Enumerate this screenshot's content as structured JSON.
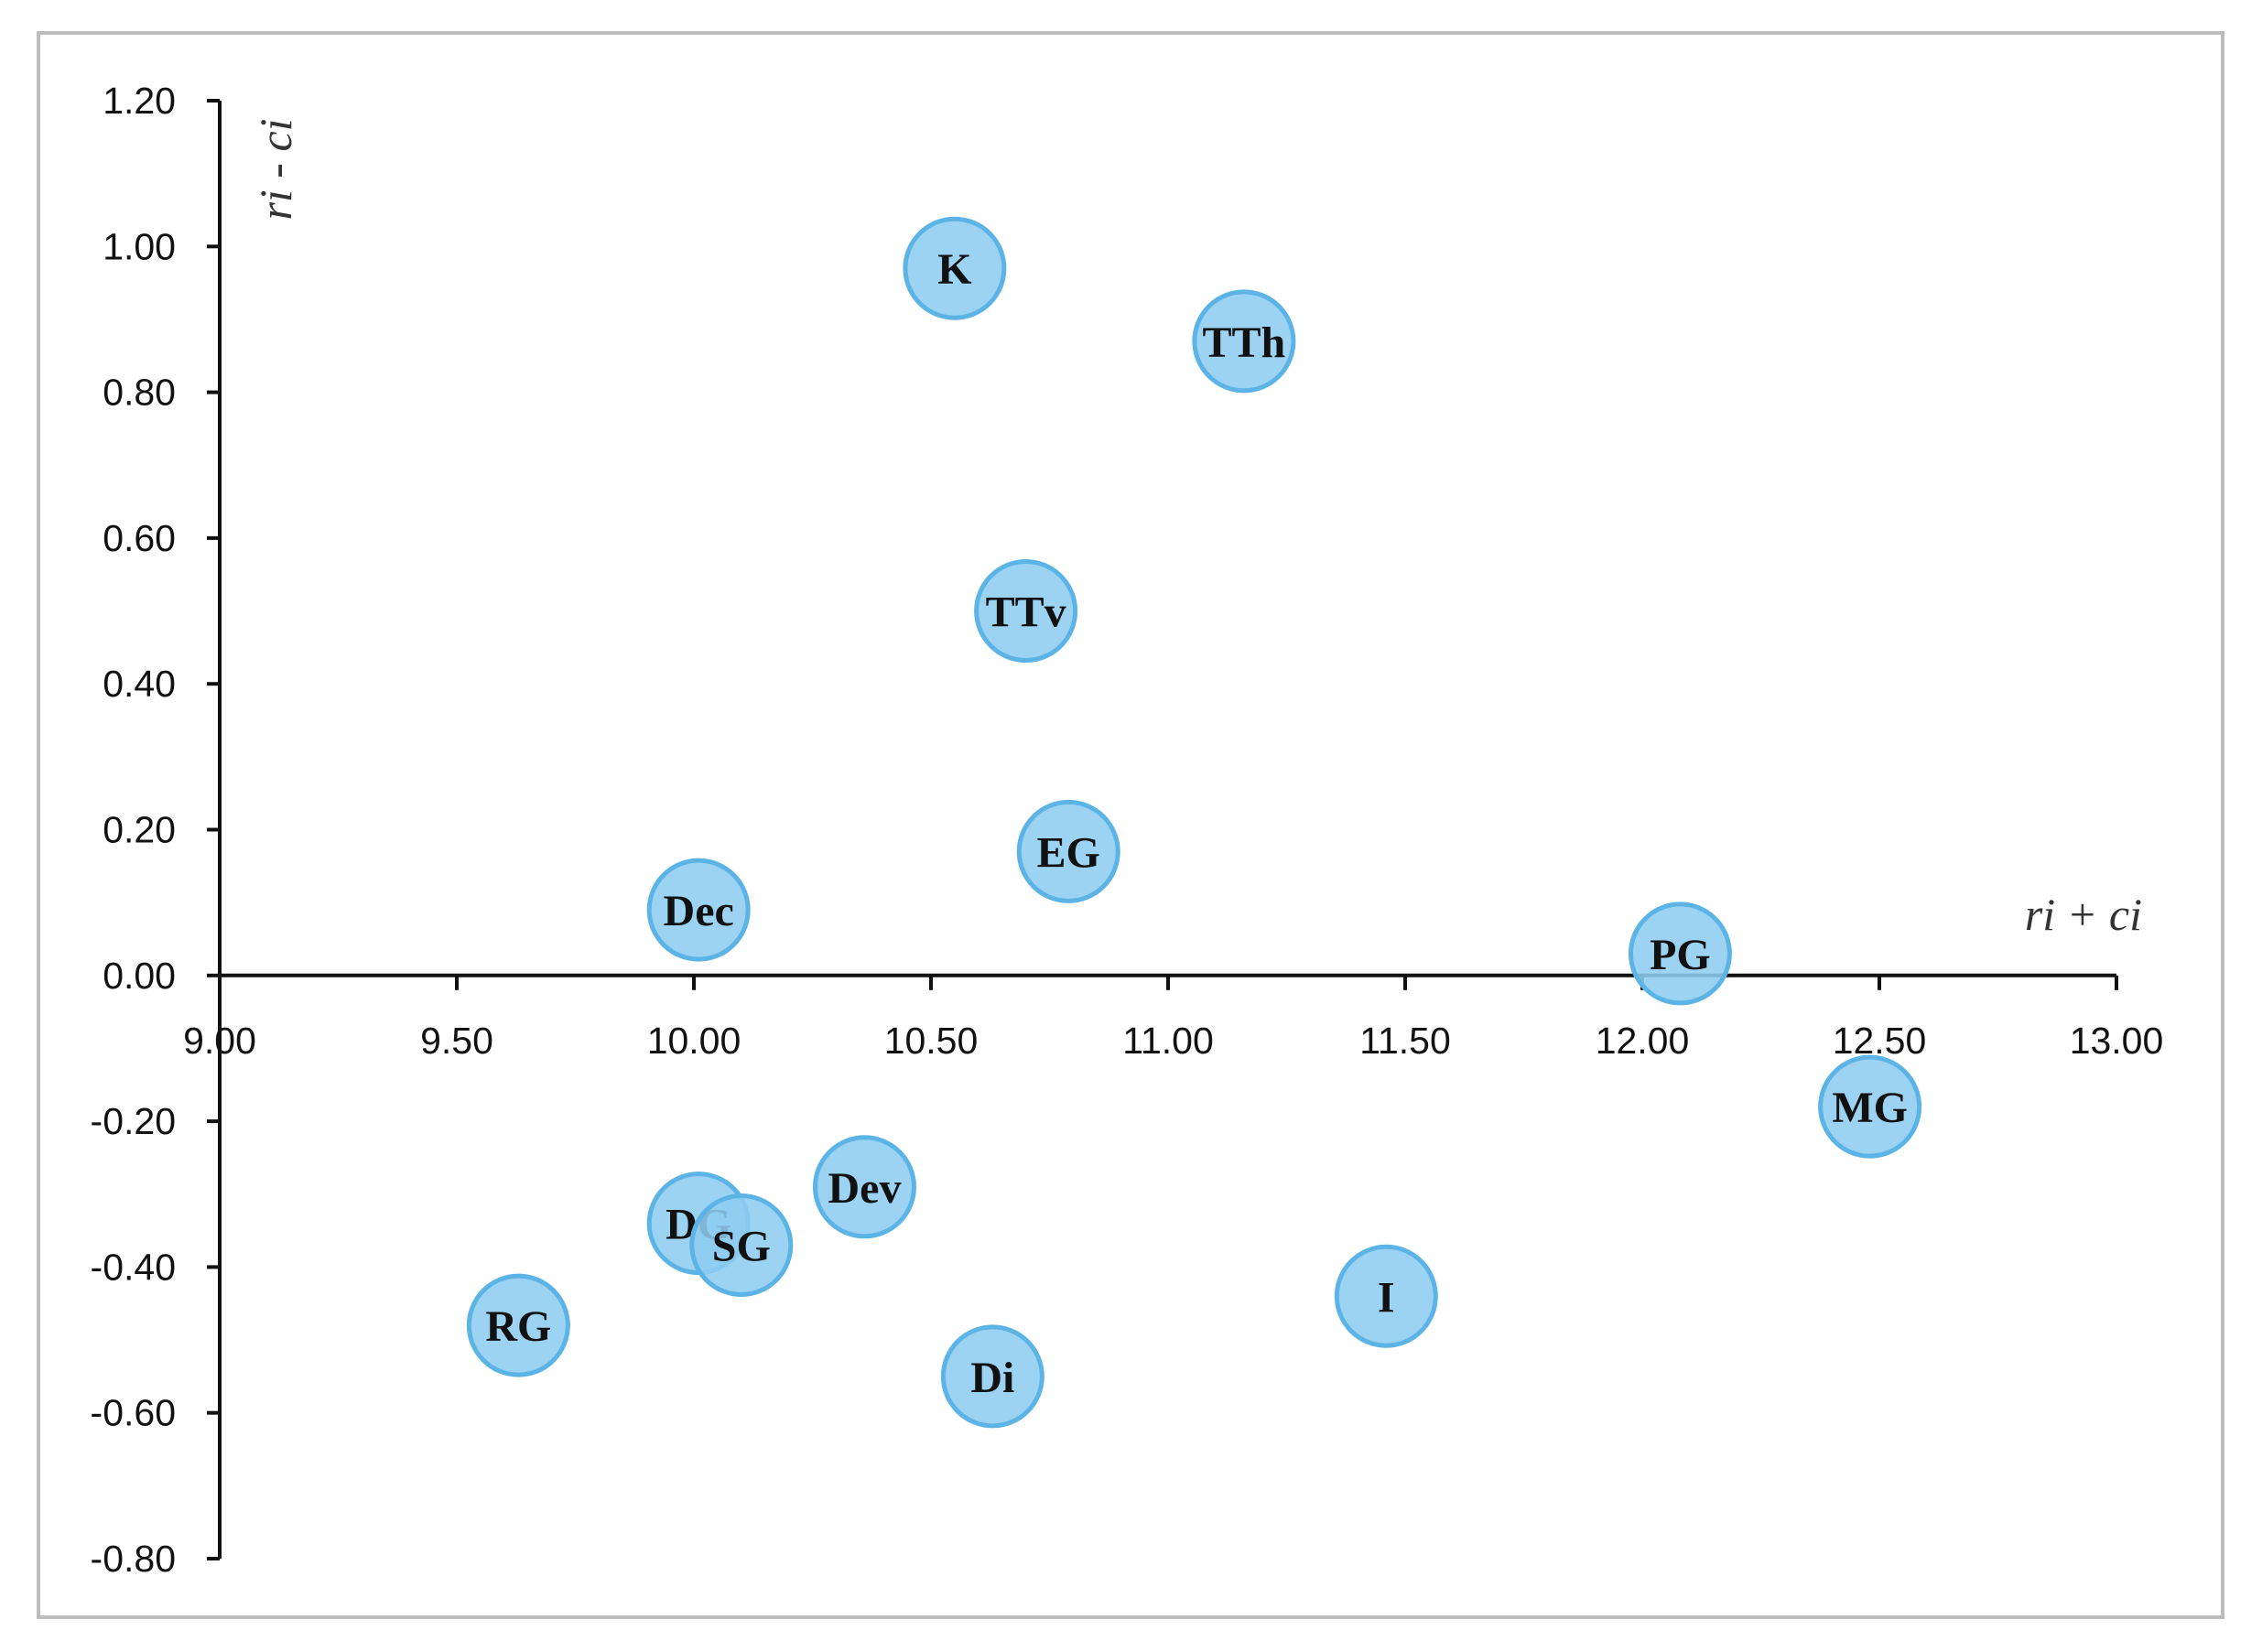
{
  "chart_data": {
    "type": "scatter",
    "title": "",
    "xlabel": "ri + ci",
    "ylabel": "ri - ci",
    "xlim": [
      9.0,
      13.0
    ],
    "ylim": [
      -0.8,
      1.2
    ],
    "x_ticks": [
      "9.00",
      "9.50",
      "10.00",
      "10.50",
      "11.00",
      "11.50",
      "12.00",
      "12.50",
      "13.00"
    ],
    "y_ticks": [
      "1.20",
      "1.00",
      "0.80",
      "0.60",
      "0.40",
      "0.20",
      "0.00",
      "-0.20",
      "-0.40",
      "-0.60",
      "-0.80"
    ],
    "x_tick_values": [
      9.0,
      9.5,
      10.0,
      10.5,
      11.0,
      11.5,
      12.0,
      12.5,
      13.0
    ],
    "y_tick_values": [
      1.2,
      1.0,
      0.8,
      0.6,
      0.4,
      0.2,
      0.0,
      -0.2,
      -0.4,
      -0.6,
      -0.8
    ],
    "grid": false,
    "marker_color": "#8ecdf0",
    "marker_edge_color": "#5bb3e6",
    "points": [
      {
        "label": "K",
        "x": 10.55,
        "y": 0.97
      },
      {
        "label": "TTh",
        "x": 11.16,
        "y": 0.87
      },
      {
        "label": "TTv",
        "x": 10.7,
        "y": 0.5
      },
      {
        "label": "EG",
        "x": 10.79,
        "y": 0.17
      },
      {
        "label": "Dec",
        "x": 10.01,
        "y": 0.09
      },
      {
        "label": "PG",
        "x": 12.08,
        "y": 0.03
      },
      {
        "label": "MG",
        "x": 12.48,
        "y": -0.18
      },
      {
        "label": "Dev",
        "x": 10.36,
        "y": -0.29
      },
      {
        "label": "DG",
        "x": 10.01,
        "y": -0.34
      },
      {
        "label": "SG",
        "x": 10.1,
        "y": -0.37
      },
      {
        "label": "I",
        "x": 11.46,
        "y": -0.44
      },
      {
        "label": "RG",
        "x": 9.63,
        "y": -0.48
      },
      {
        "label": "Di",
        "x": 10.63,
        "y": -0.55
      }
    ]
  }
}
